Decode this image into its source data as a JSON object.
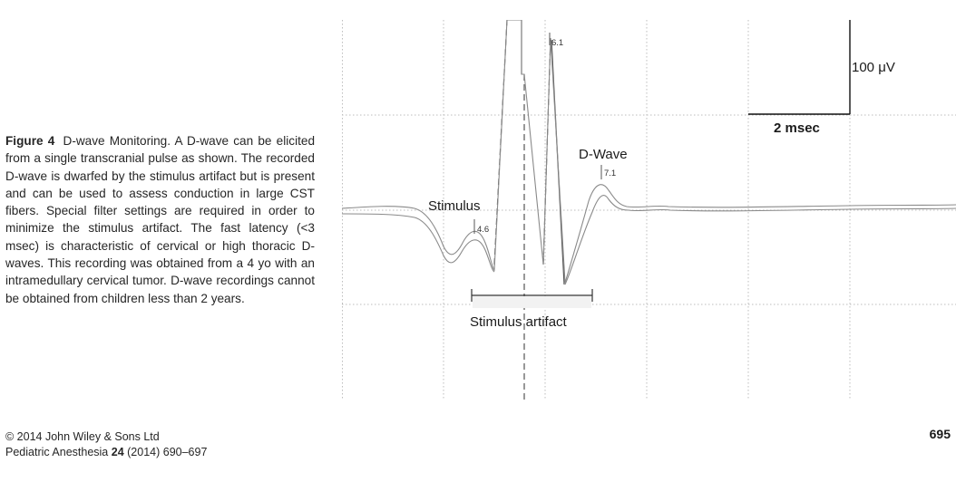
{
  "caption": {
    "label": "Figure 4",
    "text": "D-wave Monitoring. A D-wave can be elicited from a single transcranial pulse as shown. The recorded D-wave is dwarfed by the stimulus artifact but is present and can be used to assess conduction in large CST fibers. Special filter settings are required in order to minimize the stimulus artifact. The fast latency (<3 msec) is characteristic of cervical or high thoracic D-waves. This recording was obtained from a 4 yo with an intramedullary cervical tumor. D-wave recordings cannot be obtained from children less than 2 years."
  },
  "figure": {
    "scale_bar": {
      "amplitude": "100 μV",
      "time": "2 msec"
    },
    "labels": {
      "stimulus": "Stimulus",
      "d_wave": "D-Wave",
      "stimulus_artifact": "Stimulus artifact"
    },
    "latency_markers": {
      "stimulus": "4.6",
      "artifact_peak": "6.1",
      "d_wave": "7.1"
    },
    "trace_color": "#8a8a8a",
    "grid_color": "#bdbdbd"
  },
  "footer": {
    "copyright": "© 2014 John Wiley & Sons Ltd",
    "journal": "Pediatric Anesthesia",
    "volume": "24",
    "citation_rest": "(2014) 690–697"
  },
  "page_number": "695"
}
